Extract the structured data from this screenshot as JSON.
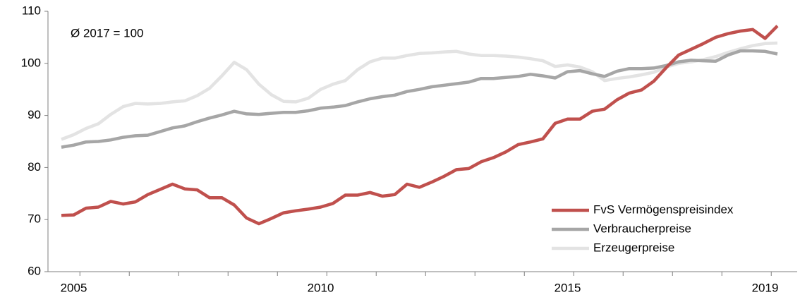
{
  "chart_data": {
    "type": "line",
    "annotation": "Ø 2017 = 100",
    "categories": [
      null,
      "2005",
      null,
      null,
      null,
      null,
      null,
      null,
      null,
      null,
      null,
      null,
      null,
      null,
      null,
      null,
      null,
      null,
      null,
      null,
      null,
      "2010",
      null,
      null,
      null,
      null,
      null,
      null,
      null,
      null,
      null,
      null,
      null,
      null,
      null,
      null,
      null,
      null,
      null,
      null,
      null,
      "2015",
      null,
      null,
      null,
      null,
      null,
      null,
      null,
      null,
      null,
      null,
      null,
      null,
      null,
      null,
      null,
      "2019",
      null
    ],
    "series": [
      {
        "name": "FvS Vermögenspreisindex",
        "color": "#c0504d",
        "values": [
          70.8,
          70.9,
          72.2,
          72.4,
          73.5,
          73.0,
          73.4,
          74.8,
          75.8,
          76.8,
          75.9,
          75.7,
          74.2,
          74.2,
          72.8,
          70.3,
          69.2,
          70.2,
          71.3,
          71.7,
          72.0,
          72.4,
          73.1,
          74.7,
          74.7,
          75.2,
          74.5,
          74.8,
          76.8,
          76.2,
          77.2,
          78.3,
          79.6,
          79.8,
          81.1,
          81.9,
          83.0,
          84.4,
          84.9,
          85.5,
          88.5,
          89.3,
          89.3,
          90.8,
          91.2,
          93.0,
          94.3,
          94.9,
          96.6,
          99.2,
          101.6,
          102.7,
          103.8,
          105.0,
          105.7,
          106.2,
          106.5,
          104.8,
          107.2
        ]
      },
      {
        "name": "Verbraucherpreise",
        "color": "#a6a6a6",
        "values": [
          83.9,
          84.3,
          84.9,
          85.0,
          85.3,
          85.8,
          86.1,
          86.2,
          86.9,
          87.6,
          88.0,
          88.8,
          89.5,
          90.1,
          90.8,
          90.3,
          90.2,
          90.4,
          90.6,
          90.6,
          90.9,
          91.4,
          91.6,
          91.9,
          92.6,
          93.2,
          93.6,
          93.9,
          94.6,
          95.0,
          95.5,
          95.8,
          96.1,
          96.4,
          97.1,
          97.1,
          97.3,
          97.5,
          97.9,
          97.6,
          97.2,
          98.4,
          98.6,
          98.0,
          97.5,
          98.5,
          99.0,
          99.0,
          99.1,
          99.6,
          100.3,
          100.6,
          100.5,
          100.4,
          101.6,
          102.4,
          102.4,
          102.3,
          101.8
        ]
      },
      {
        "name": "Erzeugerpreise",
        "color": "#e3e3e3",
        "values": [
          85.4,
          86.3,
          87.5,
          88.4,
          90.2,
          91.7,
          92.3,
          92.2,
          92.3,
          92.6,
          92.8,
          93.8,
          95.2,
          97.6,
          100.2,
          98.8,
          96.0,
          94.0,
          92.7,
          92.6,
          93.3,
          95.0,
          96.0,
          96.7,
          98.8,
          100.3,
          101.0,
          101.0,
          101.5,
          101.9,
          102.0,
          102.2,
          102.3,
          101.8,
          101.5,
          101.5,
          101.4,
          101.2,
          100.9,
          100.5,
          99.4,
          99.7,
          99.3,
          98.4,
          96.7,
          97.1,
          97.4,
          97.8,
          98.3,
          99.3,
          100.0,
          100.3,
          100.7,
          101.3,
          102.1,
          102.8,
          103.4,
          103.8,
          103.9
        ]
      }
    ],
    "ylim": [
      60,
      110
    ],
    "yticks": [
      60,
      70,
      80,
      90,
      100,
      110
    ],
    "grid": false,
    "legend": "lower right"
  }
}
